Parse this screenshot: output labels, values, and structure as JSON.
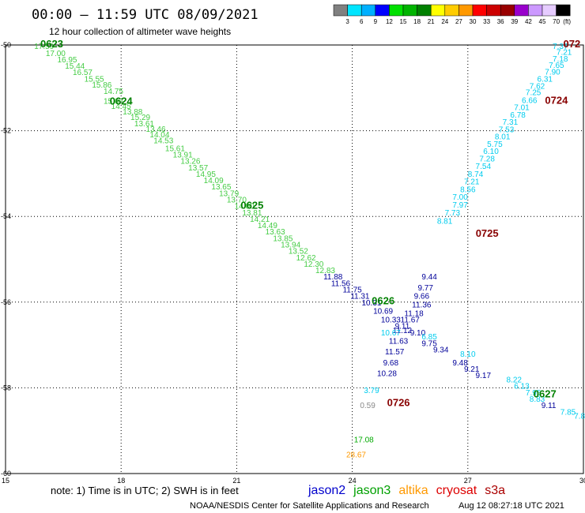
{
  "title": "00:00 — 11:59 UTC 08/09/2021",
  "subtitle": "12 hour collection of altimeter wave heights",
  "note": "note:  1) Time is in UTC;  2) SWH is in feet",
  "credit": "NOAA/NESDIS Center for Satellite Applications and Research",
  "timestamp": "Aug 12 08:27:18 UTC 2021",
  "satellites": [
    {
      "name": "jason2",
      "color": "#0000cc"
    },
    {
      "name": "jason3",
      "color": "#00a000"
    },
    {
      "name": "altika",
      "color": "#ff9900"
    },
    {
      "name": "cryosat",
      "color": "#dd0000"
    },
    {
      "name": "s3a",
      "color": "#aa0000"
    }
  ],
  "colorbar": {
    "unit": "(ft)",
    "labels": [
      "3",
      "6",
      "9",
      "12",
      "15",
      "18",
      "21",
      "24",
      "27",
      "30",
      "33",
      "36",
      "39",
      "42",
      "45",
      "70"
    ],
    "colors": [
      "#808080",
      "#00e5ff",
      "#00b0ff",
      "#0000ff",
      "#00e000",
      "#00b400",
      "#008000",
      "#ffff00",
      "#ffcc00",
      "#ff9900",
      "#ff0000",
      "#cc0000",
      "#990000",
      "#9900cc",
      "#cc99ff",
      "#e6ccff",
      "#000000"
    ]
  },
  "chart_data": {
    "type": "scatter",
    "xlim": [
      15,
      30
    ],
    "ylim": [
      -60,
      -50
    ],
    "x_ticks": [
      "15",
      "18",
      "21",
      "24",
      "27",
      "30"
    ],
    "y_ticks": [
      "-50",
      "-52",
      "-54",
      "-56",
      "-58",
      "-60"
    ],
    "grid": true,
    "tracks": [
      {
        "color": "#44cc44",
        "points": [
          [
            16.0,
            -50.02,
            "17.59"
          ],
          [
            16.3,
            -50.18,
            "17.00"
          ],
          [
            16.6,
            -50.33,
            "16.95"
          ],
          [
            16.8,
            -50.48,
            "15.44"
          ],
          [
            17.0,
            -50.63,
            "16.57"
          ],
          [
            17.3,
            -50.78,
            "15.55"
          ],
          [
            17.5,
            -50.92,
            "15.86"
          ],
          [
            17.8,
            -51.07,
            "14.75"
          ],
          [
            17.8,
            -51.3,
            "15.03"
          ],
          [
            18.0,
            -51.42,
            "14.45"
          ],
          [
            18.3,
            -51.55,
            "13.88"
          ],
          [
            18.5,
            -51.68,
            "15.29"
          ],
          [
            18.6,
            -51.82,
            "13.61"
          ],
          [
            18.9,
            -51.95,
            "13.46"
          ],
          [
            19.0,
            -52.08,
            "14.04"
          ],
          [
            19.1,
            -52.22,
            "14.53"
          ],
          [
            19.4,
            -52.4,
            "15.61"
          ],
          [
            19.6,
            -52.55,
            "13.91"
          ],
          [
            19.8,
            -52.7,
            "13.26"
          ],
          [
            20.0,
            -52.85,
            "13.57"
          ],
          [
            20.2,
            -53.0,
            "14.95"
          ],
          [
            20.4,
            -53.15,
            "14.09"
          ],
          [
            20.6,
            -53.3,
            "13.65"
          ],
          [
            20.8,
            -53.45,
            "13.79"
          ],
          [
            21.0,
            -53.6,
            "13.70"
          ],
          [
            21.2,
            -53.75,
            "14.00"
          ],
          [
            21.4,
            -53.9,
            "13.81"
          ],
          [
            21.6,
            -54.05,
            "14.21"
          ],
          [
            21.8,
            -54.2,
            "14.49"
          ],
          [
            22.0,
            -54.35,
            "13.63"
          ],
          [
            22.2,
            -54.5,
            "13.85"
          ],
          [
            22.4,
            -54.65,
            "13.94"
          ],
          [
            22.6,
            -54.8,
            "13.52"
          ],
          [
            22.8,
            -54.95,
            "12.62"
          ],
          [
            23.0,
            -55.1,
            "12.30"
          ],
          [
            23.3,
            -55.25,
            "12.83"
          ]
        ]
      },
      {
        "color": "#000099",
        "points": [
          [
            23.5,
            -55.4,
            "11.88"
          ],
          [
            23.7,
            -55.55,
            "11.56"
          ],
          [
            24.0,
            -55.7,
            "11.75"
          ],
          [
            24.2,
            -55.85,
            "11.31"
          ],
          [
            24.5,
            -56.0,
            "10.31"
          ],
          [
            24.8,
            -56.2,
            "10.69"
          ],
          [
            25.0,
            -56.4,
            "10.33"
          ],
          [
            25.3,
            -56.55,
            "9.11"
          ],
          [
            25.7,
            -56.7,
            "9.10"
          ],
          [
            26.0,
            -56.95,
            "9.75"
          ],
          [
            26.3,
            -57.1,
            "9.34"
          ],
          [
            26.8,
            -57.4,
            "9.48"
          ],
          [
            27.1,
            -57.55,
            "9.21"
          ],
          [
            27.4,
            -57.7,
            "9.17"
          ],
          [
            29.1,
            -58.4,
            "9.11"
          ]
        ]
      },
      {
        "color": "#000099",
        "points": [
          [
            26.0,
            -55.4,
            "9.44"
          ],
          [
            25.9,
            -55.65,
            "9.77"
          ],
          [
            25.8,
            -55.85,
            "9.66"
          ],
          [
            25.8,
            -56.05,
            "11.36"
          ],
          [
            25.6,
            -56.25,
            "11.18"
          ],
          [
            25.5,
            -56.4,
            "11.67"
          ],
          [
            25.3,
            -56.65,
            "11.12"
          ],
          [
            25.2,
            -56.9,
            "11.63"
          ],
          [
            25.1,
            -57.15,
            "11.57"
          ],
          [
            25.0,
            -57.4,
            "9.68"
          ],
          [
            24.9,
            -57.65,
            "10.28"
          ]
        ]
      },
      {
        "color": "#00ccee",
        "points": [
          [
            29.4,
            -50.02,
            "7.37"
          ],
          [
            29.5,
            -50.16,
            "7.21"
          ],
          [
            29.4,
            -50.31,
            "7.18"
          ],
          [
            29.3,
            -50.46,
            "7.65"
          ],
          [
            29.2,
            -50.62,
            "7.90"
          ],
          [
            29.0,
            -50.78,
            "6.31"
          ],
          [
            28.8,
            -50.95,
            "7.62"
          ],
          [
            28.7,
            -51.1,
            "7.25"
          ],
          [
            28.6,
            -51.28,
            "6.66"
          ],
          [
            28.4,
            -51.45,
            "7.01"
          ],
          [
            28.3,
            -51.62,
            "6.78"
          ],
          [
            28.1,
            -51.79,
            "7.31"
          ],
          [
            28.0,
            -51.96,
            "7.53"
          ],
          [
            27.9,
            -52.13,
            "8.01"
          ],
          [
            27.7,
            -52.3,
            "5.75"
          ],
          [
            27.6,
            -52.47,
            "6.10"
          ],
          [
            27.5,
            -52.64,
            "7.28"
          ],
          [
            27.4,
            -52.82,
            "7.54"
          ],
          [
            27.2,
            -53.0,
            "8.74"
          ],
          [
            27.1,
            -53.18,
            "7.21"
          ],
          [
            27.0,
            -53.36,
            "8.56"
          ],
          [
            26.8,
            -53.54,
            "7.00"
          ],
          [
            26.8,
            -53.72,
            "7.97"
          ],
          [
            26.6,
            -53.9,
            "7.73"
          ],
          [
            26.4,
            -54.1,
            "8.81"
          ],
          [
            26.0,
            -56.8,
            "6.85"
          ],
          [
            27.0,
            -57.2,
            "8.10"
          ],
          [
            28.2,
            -57.8,
            "8.22"
          ],
          [
            28.4,
            -57.95,
            "6.13"
          ],
          [
            28.7,
            -58.1,
            "7.95"
          ],
          [
            28.8,
            -58.25,
            "8.83"
          ],
          [
            29.6,
            -58.55,
            "7.85"
          ],
          [
            29.9,
            -58.65,
            "7.8"
          ],
          [
            25.0,
            -56.7,
            "10.67"
          ],
          [
            24.5,
            -58.05,
            "3.79"
          ]
        ]
      },
      {
        "color": "#888888",
        "points": [
          [
            24.4,
            -58.4,
            "0.59"
          ]
        ]
      },
      {
        "color": "#00aa00",
        "points": [
          [
            24.3,
            -59.2,
            "17.08"
          ]
        ]
      },
      {
        "color": "#ff9900",
        "points": [
          [
            24.1,
            -59.55,
            "28.67"
          ]
        ]
      }
    ],
    "time_labels": [
      {
        "text": "0623",
        "x": 16.2,
        "y": -49.98,
        "color": "#008000"
      },
      {
        "text": "0624",
        "x": 18.0,
        "y": -51.32,
        "color": "#008000"
      },
      {
        "text": "0625",
        "x": 21.4,
        "y": -53.75,
        "color": "#008000"
      },
      {
        "text": "0626",
        "x": 24.8,
        "y": -55.98,
        "color": "#008000"
      },
      {
        "text": "0627",
        "x": 29.0,
        "y": -58.15,
        "color": "#008000"
      },
      {
        "text": "0724",
        "x": 29.3,
        "y": -51.3,
        "color": "#880000"
      },
      {
        "text": "0725",
        "x": 27.5,
        "y": -54.4,
        "color": "#880000"
      },
      {
        "text": "0726",
        "x": 25.2,
        "y": -58.35,
        "color": "#880000"
      },
      {
        "text": "072",
        "x": 29.7,
        "y": -49.98,
        "color": "#880000"
      }
    ]
  }
}
